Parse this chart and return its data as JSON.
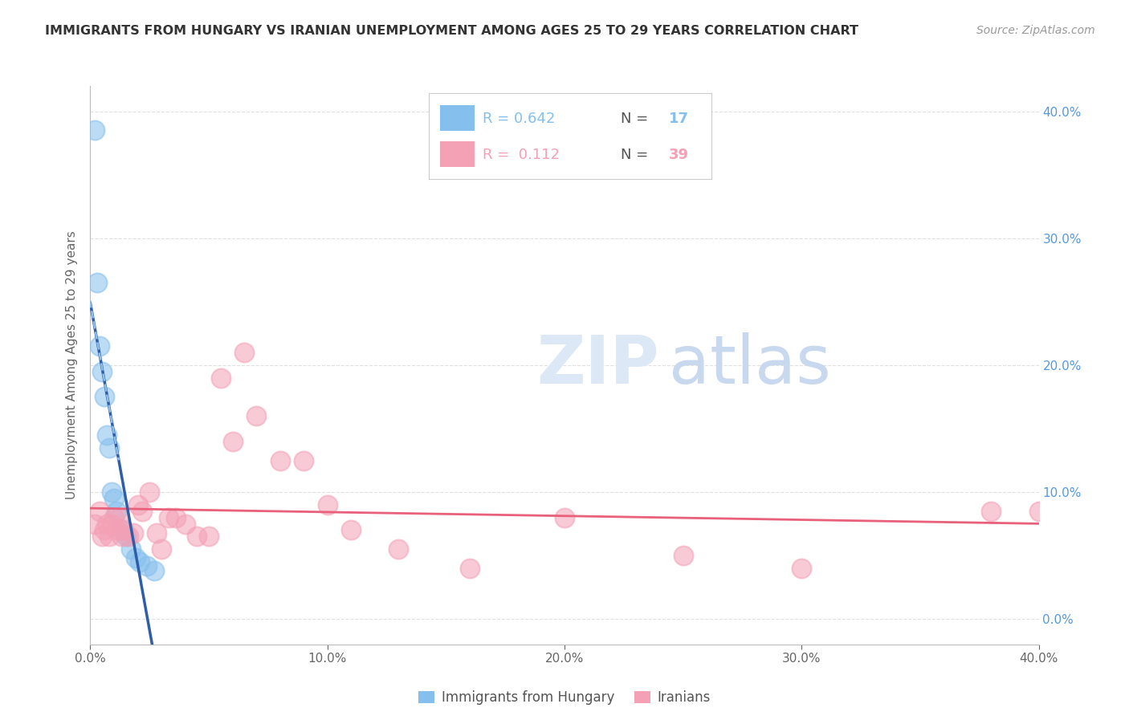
{
  "title": "IMMIGRANTS FROM HUNGARY VS IRANIAN UNEMPLOYMENT AMONG AGES 25 TO 29 YEARS CORRELATION CHART",
  "source": "Source: ZipAtlas.com",
  "ylabel": "Unemployment Among Ages 25 to 29 years",
  "xlim": [
    0.0,
    0.4
  ],
  "ylim": [
    -0.02,
    0.42
  ],
  "legend1_entries": [
    {
      "label_r": "R = ",
      "val_r": "0.642",
      "label_n": "  N = ",
      "val_n": "17",
      "color": "#85BFED"
    },
    {
      "label_r": "R =  ",
      "val_r": "0.112",
      "label_n": "  N = ",
      "val_n": "39",
      "color": "#F4A0B5"
    }
  ],
  "hungary_x": [
    0.002,
    0.003,
    0.004,
    0.005,
    0.006,
    0.007,
    0.008,
    0.009,
    0.01,
    0.011,
    0.013,
    0.015,
    0.017,
    0.019,
    0.021,
    0.024,
    0.027
  ],
  "hungary_y": [
    0.385,
    0.265,
    0.215,
    0.195,
    0.175,
    0.145,
    0.135,
    0.1,
    0.095,
    0.085,
    0.07,
    0.065,
    0.055,
    0.048,
    0.045,
    0.042,
    0.038
  ],
  "iran_x": [
    0.002,
    0.004,
    0.005,
    0.006,
    0.007,
    0.008,
    0.009,
    0.01,
    0.011,
    0.012,
    0.013,
    0.014,
    0.016,
    0.018,
    0.02,
    0.022,
    0.025,
    0.028,
    0.03,
    0.033,
    0.036,
    0.04,
    0.045,
    0.05,
    0.055,
    0.06,
    0.065,
    0.07,
    0.08,
    0.09,
    0.1,
    0.11,
    0.13,
    0.16,
    0.2,
    0.25,
    0.3,
    0.38,
    0.4
  ],
  "iran_y": [
    0.075,
    0.085,
    0.065,
    0.07,
    0.075,
    0.065,
    0.075,
    0.08,
    0.07,
    0.08,
    0.065,
    0.07,
    0.065,
    0.068,
    0.09,
    0.085,
    0.1,
    0.068,
    0.055,
    0.08,
    0.08,
    0.075,
    0.065,
    0.065,
    0.19,
    0.14,
    0.21,
    0.16,
    0.125,
    0.125,
    0.09,
    0.07,
    0.055,
    0.04,
    0.08,
    0.05,
    0.04,
    0.085,
    0.085
  ],
  "scatter_blue": "#85BFED",
  "scatter_pink": "#F4A0B5",
  "line_blue": "#2E5EAA",
  "line_pink": "#E8607A",
  "dash_blue": "#90C0E8",
  "grid_color": "#E0E0E0",
  "bg_color": "#FFFFFF",
  "title_fontsize": 11.5,
  "source_fontsize": 10,
  "tick_fontsize": 11,
  "ylabel_fontsize": 11
}
